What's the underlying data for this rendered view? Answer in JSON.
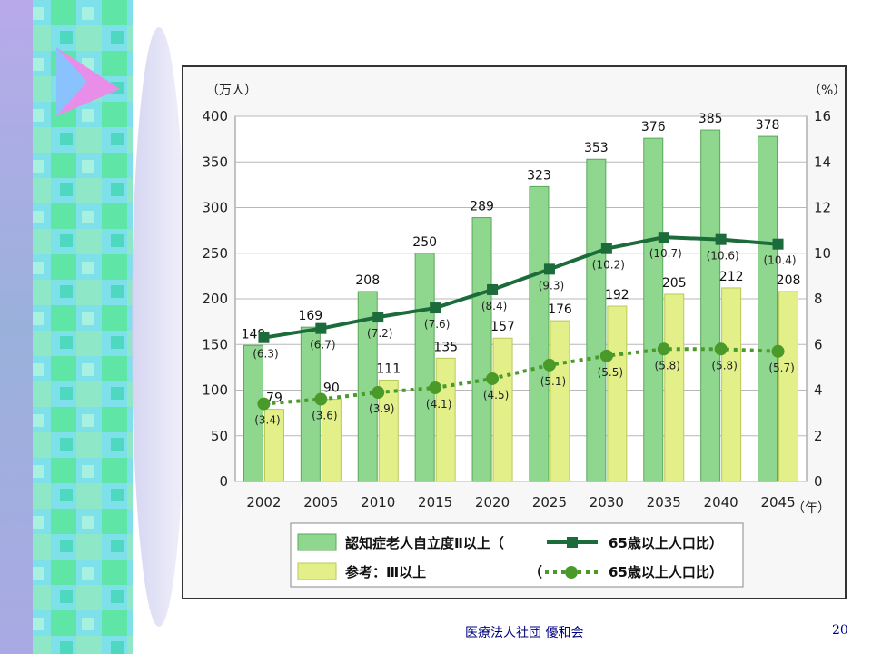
{
  "footer": {
    "org": "医療法人社団 優和会",
    "page": "20"
  },
  "colors": {
    "bar_main": "#8fd68f",
    "bar_main_stroke": "#5aa85a",
    "bar_ref": "#e3f08a",
    "bar_ref_stroke": "#b9c85a",
    "line_main": "#1c6b3a",
    "line_ref": "#4a9a2a",
    "grid": "#b8b8b8",
    "frame_bg": "#f7f7f7"
  },
  "decor": {
    "icon": "triangle-play-icon"
  },
  "chart_data": {
    "type": "bar",
    "categories": [
      "2002",
      "2005",
      "2010",
      "2015",
      "2020",
      "2025",
      "2030",
      "2035",
      "2040",
      "2045"
    ],
    "series": [
      {
        "name": "認知症老人自立度Ⅱ以上",
        "kind": "bar",
        "axis": "left",
        "values": [
          149,
          169,
          208,
          250,
          289,
          323,
          353,
          376,
          385,
          378
        ]
      },
      {
        "name": "参考：Ⅲ以上",
        "kind": "bar",
        "axis": "left",
        "values": [
          79,
          90,
          111,
          135,
          157,
          176,
          192,
          205,
          212,
          208
        ]
      },
      {
        "name": "65歳以上人口比",
        "kind": "line",
        "axis": "right",
        "values": [
          6.3,
          6.7,
          7.2,
          7.6,
          8.4,
          9.3,
          10.2,
          10.7,
          10.6,
          10.4
        ],
        "labels": [
          "(6.3)",
          "(6.7)",
          "(7.2)",
          "(7.6)",
          "(8.4)",
          "(9.3)",
          "(10.2)",
          "(10.7)",
          "(10.6)",
          "(10.4)"
        ]
      },
      {
        "name": "65歳以上人口比",
        "kind": "line",
        "axis": "right",
        "values": [
          3.4,
          3.6,
          3.9,
          4.1,
          4.5,
          5.1,
          5.5,
          5.8,
          5.8,
          5.7
        ],
        "labels": [
          "(3.4)",
          "(3.6)",
          "(3.9)",
          "(4.1)",
          "(4.5)",
          "(5.1)",
          "(5.5)",
          "(5.8)",
          "(5.8)",
          "(5.7)"
        ]
      }
    ],
    "ylabel": "（万人）",
    "y2label": "（%）",
    "xunit": "（年）",
    "ylim": [
      0,
      400
    ],
    "y2lim": [
      0,
      16
    ],
    "yticks": [
      0,
      50,
      100,
      150,
      200,
      250,
      300,
      350,
      400
    ],
    "y2ticks": [
      0,
      2,
      4,
      6,
      8,
      10,
      12,
      14,
      16
    ],
    "grid": true,
    "legend": {
      "position": "bottom",
      "row1_label": "認知症老人自立度Ⅱ以上（",
      "row1_line_label": "65歳以上人口比）",
      "row2_label": "参考：Ⅲ以上",
      "row2_line_label": "（",
      "row2_line_label2": "65歳以上人口比）"
    }
  }
}
